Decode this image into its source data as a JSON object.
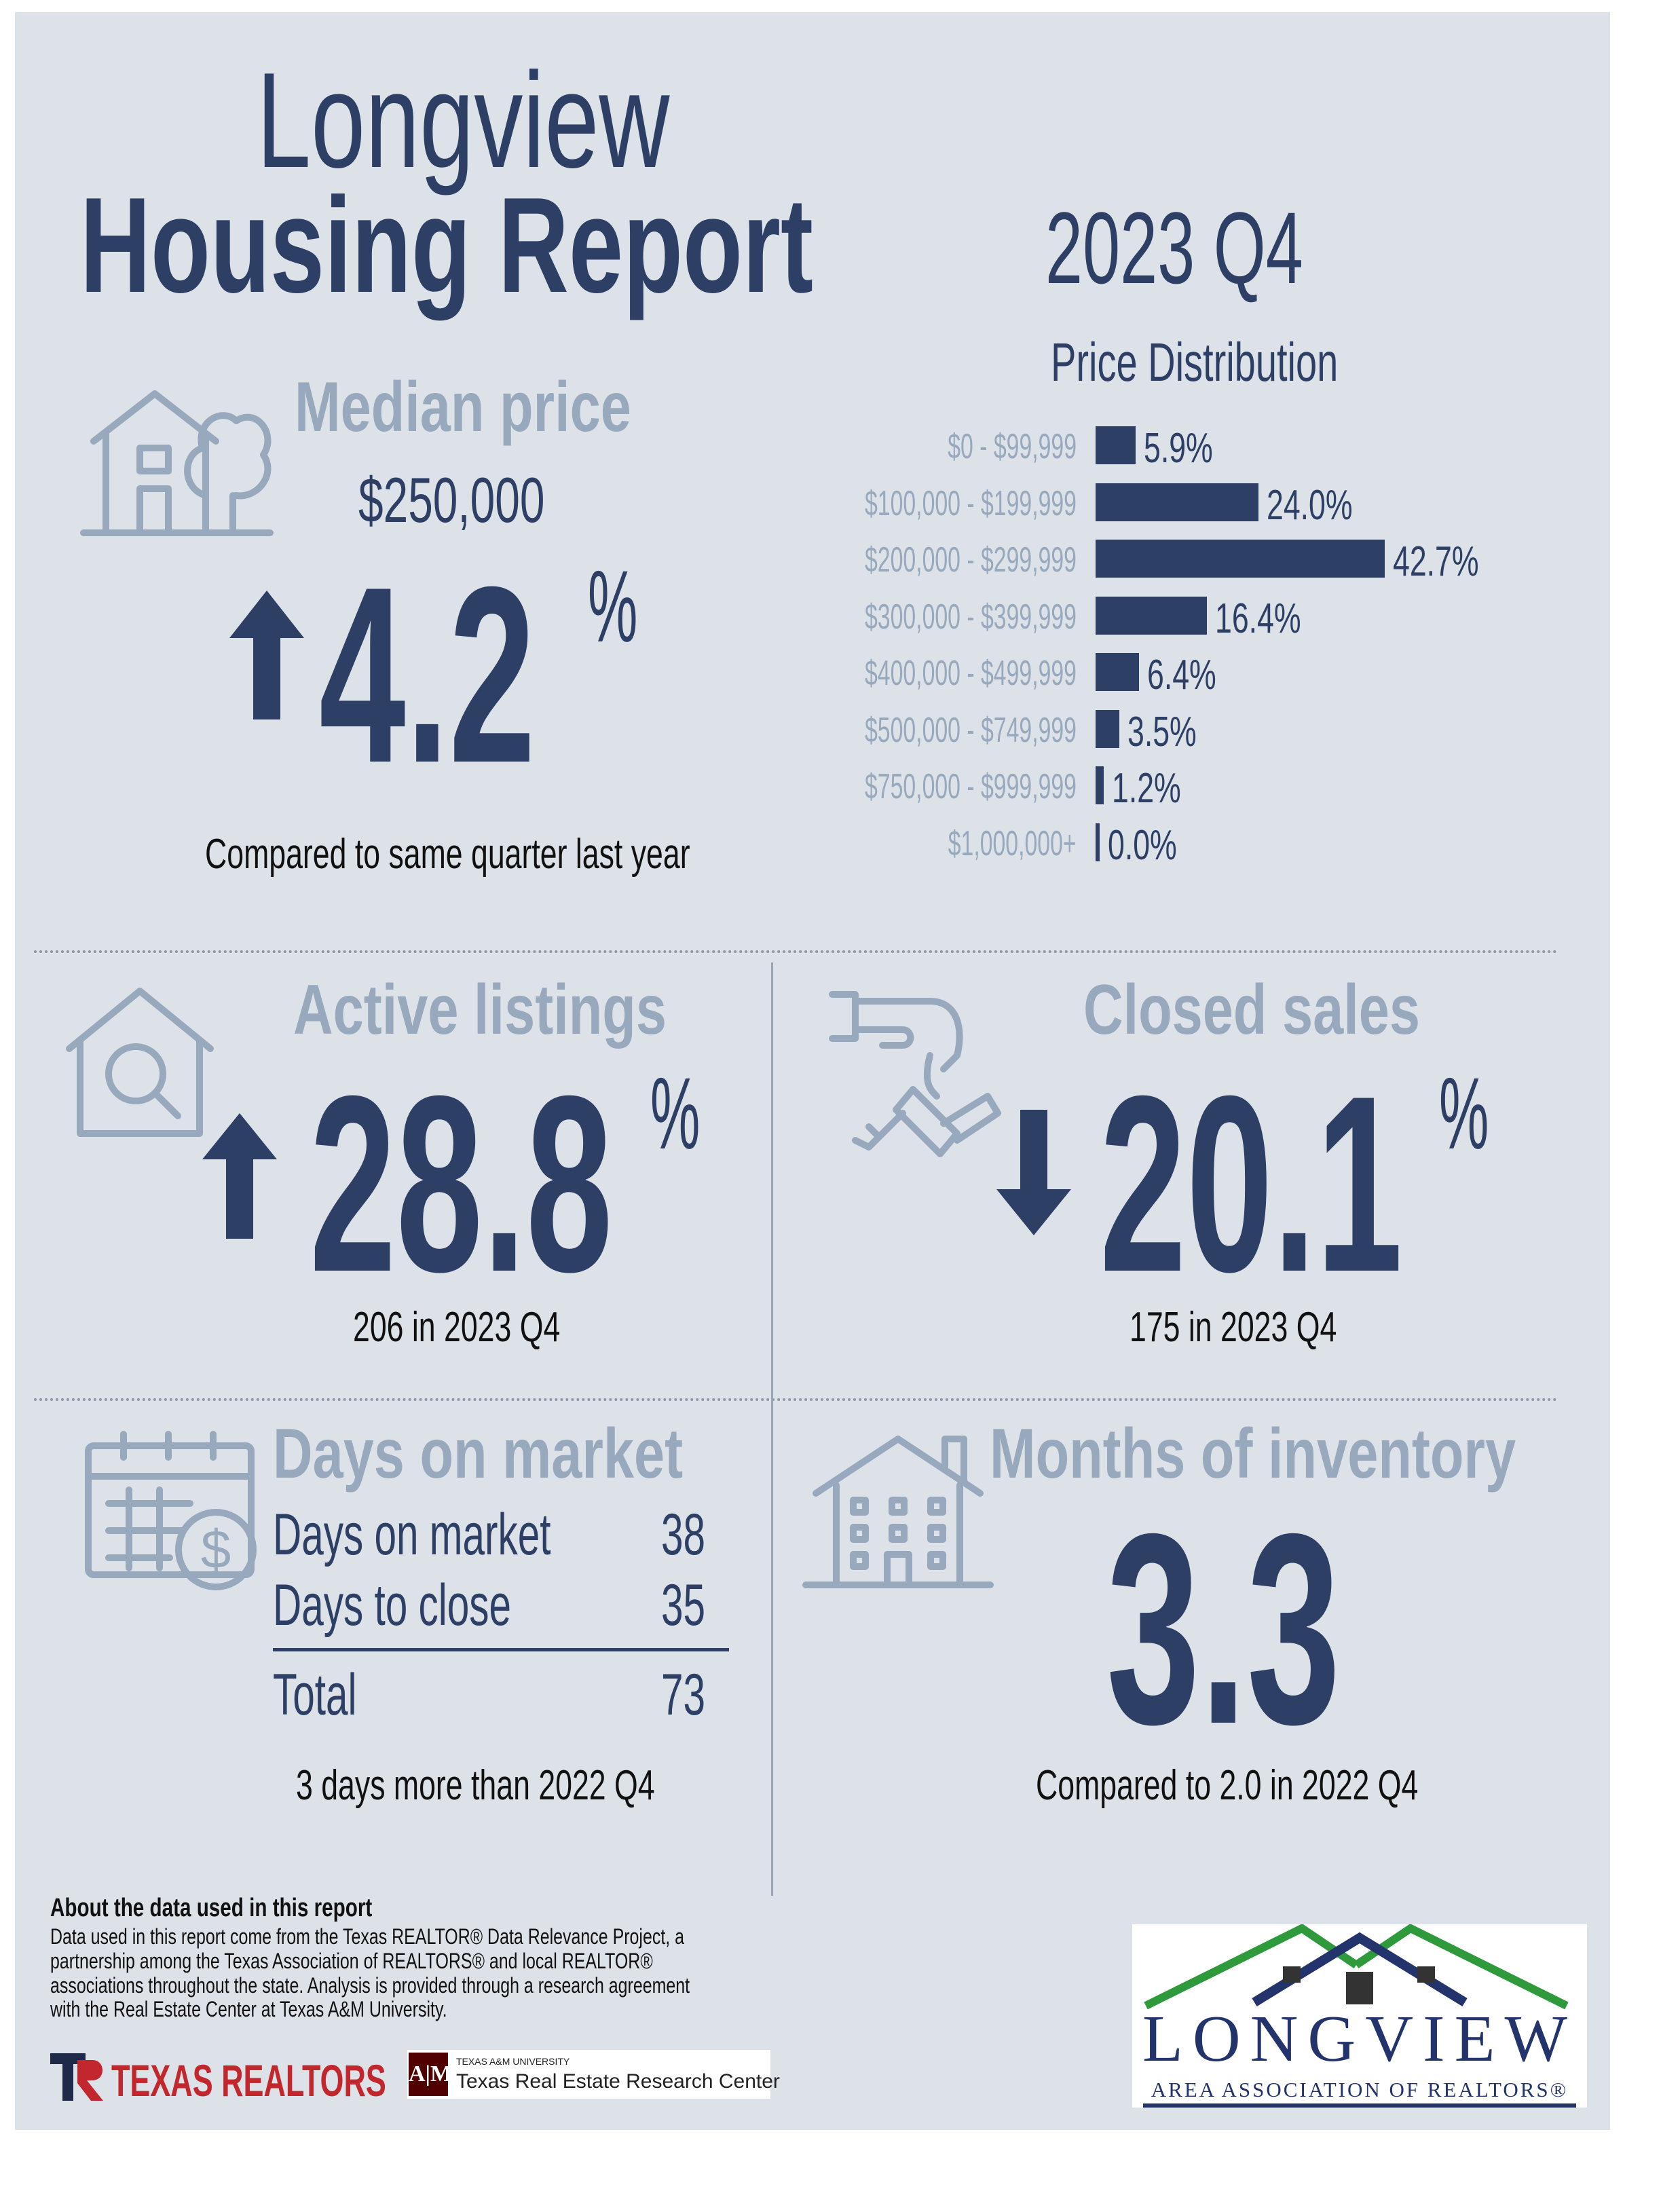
{
  "header": {
    "title_line1": "Longview",
    "title_line2": "Housing Report",
    "period": "2023 Q4"
  },
  "median_price": {
    "heading": "Median price",
    "value": "$250,000",
    "change": "4.2",
    "change_unit": "%",
    "direction": "up",
    "note": "Compared to same quarter last year",
    "icon": "house-tree-icon"
  },
  "price_distribution": {
    "heading": "Price Distribution",
    "chart_data": {
      "type": "bar",
      "orientation": "horizontal",
      "title": "Price Distribution",
      "categories": [
        "$0 - $99,999",
        "$100,000 - $199,999",
        "$200,000 - $299,999",
        "$300,000 - $399,999",
        "$400,000 - $499,999",
        "$500,000 - $749,999",
        "$750,000 - $999,999",
        "$1,000,000+"
      ],
      "values": [
        5.9,
        24.0,
        42.7,
        16.4,
        6.4,
        3.5,
        1.2,
        0.0
      ],
      "value_labels": [
        "5.9%",
        "24.0%",
        "42.7%",
        "16.4%",
        "6.4%",
        "3.5%",
        "1.2%",
        "0.0%"
      ],
      "unit": "%"
    }
  },
  "active_listings": {
    "heading": "Active listings",
    "change": "28.8",
    "change_unit": "%",
    "direction": "up",
    "note": "206 in 2023 Q4",
    "icon": "house-search-icon"
  },
  "closed_sales": {
    "heading": "Closed sales",
    "change": "20.1",
    "change_unit": "%",
    "direction": "down",
    "note": "175 in 2023 Q4",
    "icon": "hand-keys-icon"
  },
  "days_on_market": {
    "heading": "Days on market",
    "rows": [
      {
        "label": "Days on market",
        "value": "38"
      },
      {
        "label": "Days to close",
        "value": "35"
      }
    ],
    "total_label": "Total",
    "total_value": "73",
    "note": "3 days more than 2022 Q4",
    "icon": "calendar-dollar-icon"
  },
  "months_inventory": {
    "heading": "Months of inventory",
    "value": "3.3",
    "note": "Compared to 2.0 in 2022 Q4",
    "icon": "building-icon"
  },
  "footer": {
    "about_title": "About the data used in this report",
    "about_lines": [
      "Data used in this report come from the Texas REALTOR® Data Relevance Project, a",
      "partnership among the Texas Association of REALTORS® and local REALTOR®",
      "associations throughout the state. Analysis is provided through a research agreement",
      "with the Real Estate Center at Texas A&M University."
    ],
    "texas_realtors_logo": "TEXAS REALTORS",
    "tamu_small": "TEXAS A&M UNIVERSITY",
    "tamu_center": "Texas Real Estate Research Center",
    "longview_logo_main": "LONGVIEW",
    "longview_logo_sub": "AREA ASSOCIATION OF REALTORS®"
  },
  "colors": {
    "navy": "#2e3f66",
    "light_blue": "#98a9bd",
    "panel": "#dde2e9",
    "green": "#2e9a3c",
    "red": "#c1272d"
  }
}
